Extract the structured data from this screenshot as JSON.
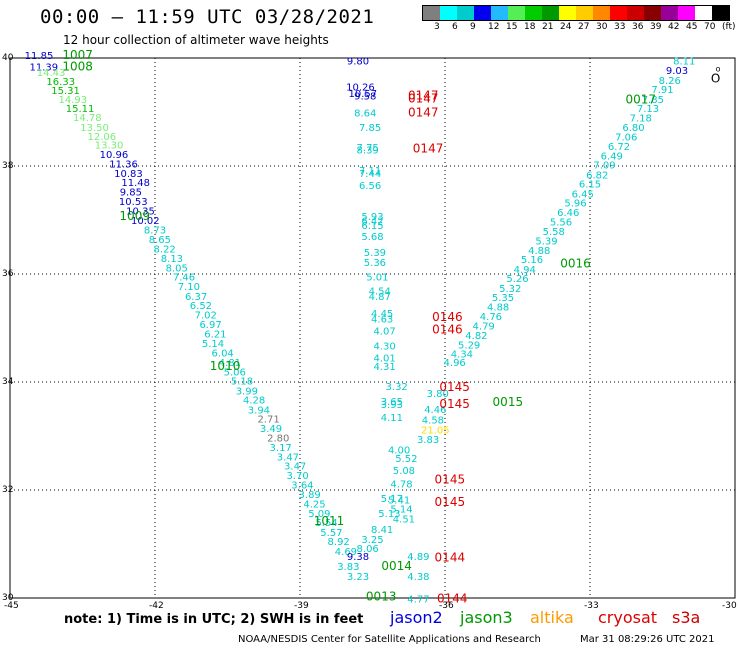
{
  "header": {
    "title": "00:00 — 11:59 UTC 03/28/2021",
    "subtitle": "12 hour collection of altimeter wave heights"
  },
  "legend": {
    "colors": [
      "#7f7f7f",
      "#00ffff",
      "#00cccc",
      "#0000ee",
      "#22bbff",
      "#55ee55",
      "#00cc00",
      "#009900",
      "#ffff00",
      "#ffcc00",
      "#ff8800",
      "#ff0000",
      "#cc0000",
      "#880000",
      "#990099",
      "#ff00ff",
      "#ffffff",
      "#000000"
    ],
    "labels": [
      "3",
      "6",
      "9",
      "12",
      "15",
      "18",
      "21",
      "24",
      "27",
      "30",
      "33",
      "36",
      "39",
      "42",
      "45",
      "70",
      "(ft)"
    ]
  },
  "axes": {
    "y_ticks": [
      "40",
      "38",
      "36",
      "34",
      "32",
      "30"
    ],
    "x_ticks": [
      "-45",
      "-42",
      "-39",
      "-36",
      "-33",
      "-30"
    ],
    "y_range": [
      30,
      40
    ],
    "x_range": [
      -45,
      -30
    ]
  },
  "track_labels": [
    {
      "t": "1007",
      "lon": -43.6,
      "lat": 39.98,
      "c": "#009900"
    },
    {
      "t": "1008",
      "lon": -43.6,
      "lat": 39.77,
      "c": "#009900"
    },
    {
      "t": "1009",
      "lon": -42.42,
      "lat": 37.0,
      "c": "#009900"
    },
    {
      "t": "1010",
      "lon": -40.55,
      "lat": 34.22,
      "c": "#009900"
    },
    {
      "t": "1011",
      "lon": -38.4,
      "lat": 31.35,
      "c": "#009900"
    },
    {
      "t": "0147",
      "lon": -36.45,
      "lat": 39.23,
      "c": "#dd0000"
    },
    {
      "t": "0147",
      "lon": -36.45,
      "lat": 39.18,
      "c": "#dd0000"
    },
    {
      "t": "0147",
      "lon": -36.45,
      "lat": 38.92,
      "c": "#dd0000"
    },
    {
      "t": "0147",
      "lon": -36.35,
      "lat": 38.25,
      "c": "#dd0000"
    },
    {
      "t": "0146",
      "lon": -35.95,
      "lat": 35.13,
      "c": "#dd0000"
    },
    {
      "t": "0146",
      "lon": -35.95,
      "lat": 34.9,
      "c": "#dd0000"
    },
    {
      "t": "0145",
      "lon": -35.8,
      "lat": 33.83,
      "c": "#dd0000"
    },
    {
      "t": "0145",
      "lon": -35.8,
      "lat": 33.52,
      "c": "#dd0000"
    },
    {
      "t": "0145",
      "lon": -35.9,
      "lat": 32.12,
      "c": "#dd0000"
    },
    {
      "t": "0145",
      "lon": -35.9,
      "lat": 31.7,
      "c": "#dd0000"
    },
    {
      "t": "0144",
      "lon": -35.9,
      "lat": 30.68,
      "c": "#dd0000"
    },
    {
      "t": "0144",
      "lon": -35.85,
      "lat": 29.92,
      "c": "#dd0000"
    },
    {
      "t": "0017",
      "lon": -31.95,
      "lat": 39.16,
      "c": "#009900"
    },
    {
      "t": "0016",
      "lon": -33.3,
      "lat": 36.12,
      "c": "#009900"
    },
    {
      "t": "0015",
      "lon": -34.7,
      "lat": 33.56,
      "c": "#009900"
    },
    {
      "t": "0014",
      "lon": -37.0,
      "lat": 30.52,
      "c": "#009900"
    },
    {
      "t": "0013",
      "lon": -37.32,
      "lat": 29.95,
      "c": "#009900"
    }
  ],
  "wave_values": [
    {
      "t": "11.85",
      "lon": -44.4,
      "lat": 39.98,
      "c": "#0000cc"
    },
    {
      "t": "11.39",
      "lon": -44.3,
      "lat": 39.77,
      "c": "#0000cc"
    },
    {
      "t": "14.43",
      "lon": -44.15,
      "lat": 39.67,
      "c": "#77ee77"
    },
    {
      "t": "16.33",
      "lon": -43.95,
      "lat": 39.5,
      "c": "#00bb00"
    },
    {
      "t": "15.31",
      "lon": -43.85,
      "lat": 39.33,
      "c": "#00bb00"
    },
    {
      "t": "14.93",
      "lon": -43.7,
      "lat": 39.17,
      "c": "#77ee77"
    },
    {
      "t": "15.11",
      "lon": -43.55,
      "lat": 39.0,
      "c": "#00bb00"
    },
    {
      "t": "14.78",
      "lon": -43.4,
      "lat": 38.83,
      "c": "#77ee77"
    },
    {
      "t": "13.50",
      "lon": -43.25,
      "lat": 38.65,
      "c": "#77ee77"
    },
    {
      "t": "12.06",
      "lon": -43.1,
      "lat": 38.48,
      "c": "#77ee77"
    },
    {
      "t": "13.30",
      "lon": -42.95,
      "lat": 38.32,
      "c": "#77ee77"
    },
    {
      "t": "10.96",
      "lon": -42.85,
      "lat": 38.15,
      "c": "#0000cc"
    },
    {
      "t": "11.36",
      "lon": -42.65,
      "lat": 37.97,
      "c": "#0000cc"
    },
    {
      "t": "10.83",
      "lon": -42.55,
      "lat": 37.8,
      "c": "#0000cc"
    },
    {
      "t": "11.48",
      "lon": -42.4,
      "lat": 37.63,
      "c": "#0000cc"
    },
    {
      "t": "9.85",
      "lon": -42.5,
      "lat": 37.45,
      "c": "#0000cc"
    },
    {
      "t": "10.53",
      "lon": -42.45,
      "lat": 37.28,
      "c": "#0000cc"
    },
    {
      "t": "10.35",
      "lon": -42.3,
      "lat": 37.1,
      "c": "#0000cc"
    },
    {
      "t": "10.02",
      "lon": -42.2,
      "lat": 36.93,
      "c": "#0000cc"
    },
    {
      "t": "8.73",
      "lon": -42.0,
      "lat": 36.75,
      "c": "#00cccc"
    },
    {
      "t": "8.65",
      "lon": -41.9,
      "lat": 36.57,
      "c": "#00cccc"
    },
    {
      "t": "8.22",
      "lon": -41.8,
      "lat": 36.4,
      "c": "#00cccc"
    },
    {
      "t": "8.13",
      "lon": -41.65,
      "lat": 36.22,
      "c": "#00cccc"
    },
    {
      "t": "8.05",
      "lon": -41.55,
      "lat": 36.05,
      "c": "#00cccc"
    },
    {
      "t": "7.46",
      "lon": -41.4,
      "lat": 35.88,
      "c": "#00cccc"
    },
    {
      "t": "7.10",
      "lon": -41.3,
      "lat": 35.7,
      "c": "#00cccc"
    },
    {
      "t": "6.37",
      "lon": -41.15,
      "lat": 35.52,
      "c": "#00cccc"
    },
    {
      "t": "6.52",
      "lon": -41.05,
      "lat": 35.35,
      "c": "#00cccc"
    },
    {
      "t": "7.02",
      "lon": -40.95,
      "lat": 35.18,
      "c": "#00cccc"
    },
    {
      "t": "6.97",
      "lon": -40.85,
      "lat": 35.0,
      "c": "#00cccc"
    },
    {
      "t": "6.21",
      "lon": -40.75,
      "lat": 34.82,
      "c": "#00cccc"
    },
    {
      "t": "5.14",
      "lon": -40.8,
      "lat": 34.65,
      "c": "#00cccc"
    },
    {
      "t": "6.04",
      "lon": -40.6,
      "lat": 34.47,
      "c": "#00cccc"
    },
    {
      "t": "4.81",
      "lon": -40.45,
      "lat": 34.3,
      "c": "#00cccc"
    },
    {
      "t": "5.06",
      "lon": -40.35,
      "lat": 34.12,
      "c": "#00cccc"
    },
    {
      "t": "5.18",
      "lon": -40.2,
      "lat": 33.95,
      "c": "#00cccc"
    },
    {
      "t": "3.99",
      "lon": -40.1,
      "lat": 33.77,
      "c": "#00cccc"
    },
    {
      "t": "4.28",
      "lon": -39.95,
      "lat": 33.6,
      "c": "#00cccc"
    },
    {
      "t": "3.94",
      "lon": -39.85,
      "lat": 33.42,
      "c": "#00cccc"
    },
    {
      "t": "2.71",
      "lon": -39.65,
      "lat": 33.25,
      "c": "#777777"
    },
    {
      "t": "3.49",
      "lon": -39.6,
      "lat": 33.07,
      "c": "#00cccc"
    },
    {
      "t": "2.80",
      "lon": -39.45,
      "lat": 32.9,
      "c": "#777777"
    },
    {
      "t": "3.17",
      "lon": -39.4,
      "lat": 32.72,
      "c": "#00cccc"
    },
    {
      "t": "3.47",
      "lon": -39.25,
      "lat": 32.55,
      "c": "#00cccc"
    },
    {
      "t": "3.47",
      "lon": -39.1,
      "lat": 32.38,
      "c": "#00cccc"
    },
    {
      "t": "3.70",
      "lon": -39.05,
      "lat": 32.2,
      "c": "#00cccc"
    },
    {
      "t": "3.64",
      "lon": -38.95,
      "lat": 32.03,
      "c": "#00cccc"
    },
    {
      "t": "3.89",
      "lon": -38.8,
      "lat": 31.85,
      "c": "#00cccc"
    },
    {
      "t": "4.25",
      "lon": -38.7,
      "lat": 31.68,
      "c": "#00cccc"
    },
    {
      "t": "5.09",
      "lon": -38.6,
      "lat": 31.5,
      "c": "#00cccc"
    },
    {
      "t": "5.54",
      "lon": -38.45,
      "lat": 31.33,
      "c": "#00cccc"
    },
    {
      "t": "5.57",
      "lon": -38.35,
      "lat": 31.15,
      "c": "#00cccc"
    },
    {
      "t": "8.92",
      "lon": -38.2,
      "lat": 30.98,
      "c": "#00cccc"
    },
    {
      "t": "4.69",
      "lon": -38.05,
      "lat": 30.8,
      "c": "#00cccc"
    },
    {
      "t": "9.80",
      "lon": -37.8,
      "lat": 39.88,
      "c": "#0000cc"
    },
    {
      "t": "10.26",
      "lon": -37.75,
      "lat": 39.4,
      "c": "#0000cc"
    },
    {
      "t": "10.57",
      "lon": -37.7,
      "lat": 39.28,
      "c": "#0000cc"
    },
    {
      "t": "9.58",
      "lon": -37.65,
      "lat": 39.23,
      "c": "#0000cc"
    },
    {
      "t": "8.64",
      "lon": -37.65,
      "lat": 38.92,
      "c": "#00cccc"
    },
    {
      "t": "7.85",
      "lon": -37.55,
      "lat": 38.65,
      "c": "#00cccc"
    },
    {
      "t": "7.75",
      "lon": -37.6,
      "lat": 38.28,
      "c": "#00cccc"
    },
    {
      "t": "8.39",
      "lon": -37.6,
      "lat": 38.23,
      "c": "#00cccc"
    },
    {
      "t": "7.11",
      "lon": -37.55,
      "lat": 37.85,
      "c": "#00cccc"
    },
    {
      "t": "7.44",
      "lon": -37.55,
      "lat": 37.8,
      "c": "#00cccc"
    },
    {
      "t": "6.56",
      "lon": -37.55,
      "lat": 37.57,
      "c": "#00cccc"
    },
    {
      "t": "5.93",
      "lon": -37.5,
      "lat": 37.0,
      "c": "#00cccc"
    },
    {
      "t": "6.42",
      "lon": -37.5,
      "lat": 36.92,
      "c": "#00cccc"
    },
    {
      "t": "6.15",
      "lon": -37.5,
      "lat": 36.83,
      "c": "#00cccc"
    },
    {
      "t": "5.68",
      "lon": -37.5,
      "lat": 36.63,
      "c": "#00cccc"
    },
    {
      "t": "5.39",
      "lon": -37.45,
      "lat": 36.33,
      "c": "#00cccc"
    },
    {
      "t": "5.36",
      "lon": -37.45,
      "lat": 36.15,
      "c": "#00cccc"
    },
    {
      "t": "5.01",
      "lon": -37.4,
      "lat": 35.88,
      "c": "#00cccc"
    },
    {
      "t": "4.54",
      "lon": -37.35,
      "lat": 35.62,
      "c": "#00cccc"
    },
    {
      "t": "4.87",
      "lon": -37.35,
      "lat": 35.52,
      "c": "#00cccc"
    },
    {
      "t": "4.45",
      "lon": -37.3,
      "lat": 35.2,
      "c": "#00cccc"
    },
    {
      "t": "4.63",
      "lon": -37.3,
      "lat": 35.1,
      "c": "#00cccc"
    },
    {
      "t": "4.07",
      "lon": -37.25,
      "lat": 34.88,
      "c": "#00cccc"
    },
    {
      "t": "4.30",
      "lon": -37.25,
      "lat": 34.6,
      "c": "#00cccc"
    },
    {
      "t": "4.01",
      "lon": -37.25,
      "lat": 34.38,
      "c": "#00cccc"
    },
    {
      "t": "4.31",
      "lon": -37.25,
      "lat": 34.22,
      "c": "#00cccc"
    },
    {
      "t": "3.32",
      "lon": -37.0,
      "lat": 33.85,
      "c": "#00cccc"
    },
    {
      "t": "3.65",
      "lon": -37.1,
      "lat": 33.57,
      "c": "#00cccc"
    },
    {
      "t": "3.93",
      "lon": -37.1,
      "lat": 33.52,
      "c": "#00cccc"
    },
    {
      "t": "4.11",
      "lon": -37.1,
      "lat": 33.28,
      "c": "#00cccc"
    },
    {
      "t": "4.00",
      "lon": -36.95,
      "lat": 32.68,
      "c": "#00cccc"
    },
    {
      "t": "5.52",
      "lon": -36.8,
      "lat": 32.52,
      "c": "#00cccc"
    },
    {
      "t": "5.08",
      "lon": -36.85,
      "lat": 32.3,
      "c": "#00cccc"
    },
    {
      "t": "4.78",
      "lon": -36.9,
      "lat": 32.05,
      "c": "#00cccc"
    },
    {
      "t": "5.17",
      "lon": -37.1,
      "lat": 31.78,
      "c": "#00cccc"
    },
    {
      "t": "5.41",
      "lon": -36.95,
      "lat": 31.75,
      "c": "#00cccc"
    },
    {
      "t": "5.14",
      "lon": -36.9,
      "lat": 31.58,
      "c": "#00cccc"
    },
    {
      "t": "4.51",
      "lon": -36.85,
      "lat": 31.4,
      "c": "#00cccc"
    },
    {
      "t": "5.13",
      "lon": -37.15,
      "lat": 31.5,
      "c": "#00cccc"
    },
    {
      "t": "8.41",
      "lon": -37.3,
      "lat": 31.2,
      "c": "#00cccc"
    },
    {
      "t": "3.25",
      "lon": -37.5,
      "lat": 31.02,
      "c": "#00cccc"
    },
    {
      "t": "8.06",
      "lon": -37.6,
      "lat": 30.85,
      "c": "#00cccc"
    },
    {
      "t": "9.38",
      "lon": -37.8,
      "lat": 30.7,
      "c": "#0000cc"
    },
    {
      "t": "3.83",
      "lon": -38.0,
      "lat": 30.52,
      "c": "#00cccc"
    },
    {
      "t": "3.23",
      "lon": -37.8,
      "lat": 30.33,
      "c": "#00cccc"
    },
    {
      "t": "4.89",
      "lon": -36.55,
      "lat": 30.7,
      "c": "#00cccc"
    },
    {
      "t": "4.38",
      "lon": -36.55,
      "lat": 30.33,
      "c": "#00cccc"
    },
    {
      "t": "4.77",
      "lon": -36.55,
      "lat": 29.92,
      "c": "#00cccc"
    },
    {
      "t": "3.80",
      "lon": -36.15,
      "lat": 33.72,
      "c": "#00cccc"
    },
    {
      "t": "4.46",
      "lon": -36.2,
      "lat": 33.43,
      "c": "#00cccc"
    },
    {
      "t": "4.58",
      "lon": -36.25,
      "lat": 33.23,
      "c": "#00cccc"
    },
    {
      "t": "21.05",
      "lon": -36.2,
      "lat": 33.05,
      "c": "#ffdd00"
    },
    {
      "t": "3.83",
      "lon": -36.35,
      "lat": 32.87,
      "c": "#00cccc"
    },
    {
      "t": "8.11",
      "lon": -31.05,
      "lat": 39.88,
      "c": "#00cccc"
    },
    {
      "t": "9.03",
      "lon": -31.2,
      "lat": 39.7,
      "c": "#0000cc"
    },
    {
      "t": "8.26",
      "lon": -31.35,
      "lat": 39.52,
      "c": "#00cccc"
    },
    {
      "t": "7.91",
      "lon": -31.5,
      "lat": 39.35,
      "c": "#00cccc"
    },
    {
      "t": "7.85",
      "lon": -31.7,
      "lat": 39.17,
      "c": "#00cccc"
    },
    {
      "t": "7.13",
      "lon": -31.8,
      "lat": 39.0,
      "c": "#00cccc"
    },
    {
      "t": "7.18",
      "lon": -31.95,
      "lat": 38.82,
      "c": "#00cccc"
    },
    {
      "t": "6.80",
      "lon": -32.1,
      "lat": 38.65,
      "c": "#00cccc"
    },
    {
      "t": "7.06",
      "lon": -32.25,
      "lat": 38.47,
      "c": "#00cccc"
    },
    {
      "t": "6.72",
      "lon": -32.4,
      "lat": 38.3,
      "c": "#00cccc"
    },
    {
      "t": "6.49",
      "lon": -32.55,
      "lat": 38.12,
      "c": "#00cccc"
    },
    {
      "t": "7.09",
      "lon": -32.7,
      "lat": 37.95,
      "c": "#00cccc"
    },
    {
      "t": "6.82",
      "lon": -32.85,
      "lat": 37.77,
      "c": "#00cccc"
    },
    {
      "t": "6.15",
      "lon": -33.0,
      "lat": 37.6,
      "c": "#00cccc"
    },
    {
      "t": "6.45",
      "lon": -33.15,
      "lat": 37.42,
      "c": "#00cccc"
    },
    {
      "t": "5.96",
      "lon": -33.3,
      "lat": 37.25,
      "c": "#00cccc"
    },
    {
      "t": "6.46",
      "lon": -33.45,
      "lat": 37.07,
      "c": "#00cccc"
    },
    {
      "t": "5.56",
      "lon": -33.6,
      "lat": 36.9,
      "c": "#00cccc"
    },
    {
      "t": "5.58",
      "lon": -33.75,
      "lat": 36.72,
      "c": "#00cccc"
    },
    {
      "t": "5.39",
      "lon": -33.9,
      "lat": 36.55,
      "c": "#00cccc"
    },
    {
      "t": "4.88",
      "lon": -34.05,
      "lat": 36.37,
      "c": "#00cccc"
    },
    {
      "t": "5.16",
      "lon": -34.2,
      "lat": 36.2,
      "c": "#00cccc"
    },
    {
      "t": "4.94",
      "lon": -34.35,
      "lat": 36.02,
      "c": "#00cccc"
    },
    {
      "t": "5.26",
      "lon": -34.5,
      "lat": 35.85,
      "c": "#00cccc"
    },
    {
      "t": "5.32",
      "lon": -34.65,
      "lat": 35.67,
      "c": "#00cccc"
    },
    {
      "t": "5.35",
      "lon": -34.8,
      "lat": 35.5,
      "c": "#00cccc"
    },
    {
      "t": "4.88",
      "lon": -34.9,
      "lat": 35.32,
      "c": "#00cccc"
    },
    {
      "t": "4.76",
      "lon": -35.05,
      "lat": 35.15,
      "c": "#00cccc"
    },
    {
      "t": "4.79",
      "lon": -35.2,
      "lat": 34.97,
      "c": "#00cccc"
    },
    {
      "t": "4.82",
      "lon": -35.35,
      "lat": 34.8,
      "c": "#00cccc"
    },
    {
      "t": "5.29",
      "lon": -35.5,
      "lat": 34.62,
      "c": "#00cccc"
    },
    {
      "t": "4.34",
      "lon": -35.65,
      "lat": 34.45,
      "c": "#00cccc"
    },
    {
      "t": "4.96",
      "lon": -35.8,
      "lat": 34.3,
      "c": "#00cccc"
    }
  ],
  "symbols": {
    "circle": "O",
    "dot": "o"
  },
  "footer": {
    "note": "note:  1) Time is in UTC;  2) SWH is in feet",
    "satellites": [
      {
        "name": "jason2",
        "color": "#0000dd"
      },
      {
        "name": "jason3",
        "color": "#009900"
      },
      {
        "name": "altika",
        "color": "#ff9900"
      },
      {
        "name": "cryosat",
        "color": "#dd0000"
      },
      {
        "name": "s3a",
        "color": "#cc0000"
      }
    ],
    "credit": "NOAA/NESDIS Center for Satellite Applications and Research",
    "stamp": "Mar 31 08:29:26 UTC 2021"
  }
}
